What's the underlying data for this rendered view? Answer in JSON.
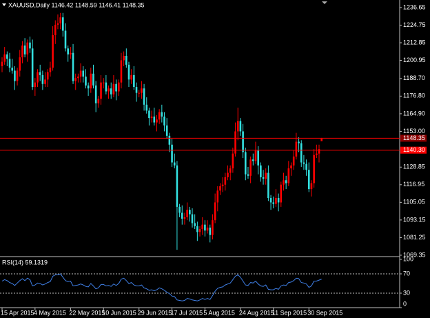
{
  "chart_data": [
    {
      "type": "candlestick",
      "title": "XAUUSD,Daily 1146.42 1148.59 1146.41 1148.35",
      "categories": [
        "15 Apr 2015",
        null,
        null,
        null,
        null,
        null,
        null,
        null,
        null,
        null,
        null,
        null,
        null,
        "4 May 2015",
        null,
        null,
        null,
        null,
        null,
        null,
        null,
        null,
        null,
        null,
        null,
        null,
        null,
        "22 May 2015",
        null,
        null,
        null,
        null,
        null,
        null,
        null,
        null,
        null,
        null,
        null,
        null,
        "10 Jun 2015",
        null,
        null,
        null,
        null,
        null,
        null,
        null,
        null,
        null,
        null,
        null,
        null,
        null,
        "29 Jun 2015",
        null,
        null,
        null,
        null,
        null,
        null,
        null,
        null,
        null,
        null,
        null,
        null,
        "17 Jul 2015",
        null,
        null,
        null,
        null,
        null,
        null,
        null,
        null,
        null,
        null,
        null,
        null,
        "5 Aug 2015",
        null,
        null,
        null,
        null,
        null,
        null,
        null,
        null,
        null,
        null,
        null,
        null,
        null,
        "24 Aug 2015",
        null,
        null,
        null,
        null,
        null,
        null,
        null,
        null,
        null,
        null,
        null,
        null,
        "11 Sep 2015",
        null,
        null,
        null,
        null,
        null,
        null,
        null,
        null,
        null,
        null,
        null,
        null,
        null,
        "30 Sep 2015",
        null,
        null,
        null,
        null,
        null
      ],
      "open": [
        1197,
        1200,
        1205,
        1202,
        1196,
        1194,
        1187,
        1194,
        1203,
        1211,
        1205,
        1213,
        1209,
        1183,
        1186,
        1193,
        1191,
        1185,
        1188,
        1193,
        1196,
        1218,
        1225,
        1226,
        1230,
        1221,
        1209,
        1205,
        1206,
        1187,
        1189,
        1190,
        1194,
        1190,
        1184,
        1182,
        1192,
        1184,
        1172,
        1175,
        1186,
        1186,
        1180,
        1182,
        1178,
        1185,
        1180,
        1186,
        1201,
        1204,
        1198,
        1188,
        1191,
        1183,
        1179,
        1179,
        1182,
        1171,
        1167,
        1162,
        1163,
        1159,
        1161,
        1166,
        1163,
        1157,
        1150,
        1144,
        1132,
        1130,
        1102,
        1098,
        1094,
        1095,
        1100,
        1097,
        1091,
        1089,
        1085,
        1087,
        1090,
        1086,
        1088,
        1083,
        1093,
        1105,
        1113,
        1116,
        1117,
        1122,
        1125,
        1128,
        1138,
        1153,
        1160,
        1153,
        1139,
        1124,
        1123,
        1134,
        1133,
        1140,
        1130,
        1122,
        1121,
        1125,
        1108,
        1105,
        1104,
        1108,
        1105,
        1117,
        1120,
        1118,
        1128,
        1130,
        1136,
        1146,
        1145,
        1132,
        1131,
        1127,
        1114,
        1118,
        1137,
        1138,
        1146.42
      ],
      "high": [
        1203,
        1210,
        1207,
        1206,
        1202,
        1197,
        1196,
        1208,
        1214,
        1216,
        1215,
        1217,
        1215,
        1189,
        1195,
        1198,
        1194,
        1193,
        1195,
        1200,
        1224,
        1228,
        1232,
        1233,
        1233,
        1226,
        1211,
        1210,
        1212,
        1192,
        1192,
        1199,
        1197,
        1195,
        1186,
        1196,
        1198,
        1187,
        1177,
        1191,
        1189,
        1191,
        1184,
        1186,
        1191,
        1188,
        1188,
        1206,
        1207,
        1209,
        1200,
        1195,
        1197,
        1186,
        1181,
        1187,
        1185,
        1176,
        1169,
        1167,
        1169,
        1164,
        1168,
        1171,
        1166,
        1162,
        1152,
        1148,
        1138,
        1133,
        1104,
        1103,
        1098,
        1105,
        1102,
        1101,
        1097,
        1092,
        1089,
        1095,
        1093,
        1093,
        1090,
        1097,
        1111,
        1116,
        1118,
        1122,
        1125,
        1130,
        1130,
        1142,
        1159,
        1169,
        1162,
        1158,
        1142,
        1129,
        1136,
        1138,
        1146,
        1143,
        1132,
        1127,
        1128,
        1130,
        1110,
        1109,
        1114,
        1111,
        1119,
        1125,
        1123,
        1133,
        1132,
        1140,
        1152,
        1149,
        1147,
        1137,
        1134,
        1132,
        1120,
        1141,
        1144,
        1144,
        1148.59
      ],
      "low": [
        1193,
        1198,
        1197,
        1193,
        1192,
        1181,
        1184,
        1190,
        1199,
        1203,
        1200,
        1206,
        1181,
        1177,
        1183,
        1187,
        1181,
        1183,
        1183,
        1190,
        1194,
        1212,
        1222,
        1222,
        1217,
        1207,
        1200,
        1202,
        1185,
        1181,
        1186,
        1186,
        1186,
        1182,
        1177,
        1179,
        1182,
        1166,
        1169,
        1171,
        1182,
        1178,
        1175,
        1175,
        1176,
        1174,
        1177,
        1182,
        1197,
        1196,
        1183,
        1185,
        1181,
        1173,
        1176,
        1175,
        1167,
        1165,
        1157,
        1159,
        1157,
        1153,
        1158,
        1159,
        1153,
        1148,
        1139,
        1129,
        1128,
        1073,
        1095,
        1090,
        1090,
        1093,
        1092,
        1088,
        1087,
        1079,
        1082,
        1083,
        1082,
        1084,
        1078,
        1080,
        1091,
        1099,
        1110,
        1112,
        1113,
        1120,
        1120,
        1125,
        1136,
        1147,
        1150,
        1135,
        1120,
        1121,
        1118,
        1130,
        1131,
        1124,
        1119,
        1117,
        1117,
        1106,
        1100,
        1101,
        1102,
        1099,
        1102,
        1113,
        1114,
        1116,
        1123,
        1127,
        1134,
        1139,
        1129,
        1127,
        1123,
        1112,
        1109,
        1115,
        1135,
        1132,
        1146.41
      ],
      "close": [
        1200,
        1205,
        1202,
        1196,
        1194,
        1187,
        1194,
        1203,
        1211,
        1205,
        1213,
        1209,
        1183,
        1186,
        1193,
        1191,
        1185,
        1188,
        1193,
        1196,
        1218,
        1225,
        1226,
        1230,
        1221,
        1209,
        1205,
        1206,
        1187,
        1189,
        1190,
        1194,
        1190,
        1184,
        1182,
        1192,
        1184,
        1172,
        1175,
        1186,
        1186,
        1180,
        1182,
        1178,
        1185,
        1180,
        1186,
        1201,
        1204,
        1198,
        1188,
        1191,
        1183,
        1179,
        1179,
        1182,
        1171,
        1167,
        1162,
        1163,
        1159,
        1161,
        1166,
        1163,
        1157,
        1150,
        1144,
        1132,
        1130,
        1102,
        1098,
        1094,
        1095,
        1100,
        1097,
        1091,
        1089,
        1085,
        1087,
        1090,
        1086,
        1088,
        1083,
        1093,
        1105,
        1113,
        1116,
        1117,
        1122,
        1125,
        1128,
        1138,
        1153,
        1160,
        1153,
        1139,
        1124,
        1123,
        1134,
        1133,
        1140,
        1130,
        1122,
        1121,
        1125,
        1108,
        1105,
        1104,
        1108,
        1105,
        1117,
        1120,
        1118,
        1128,
        1130,
        1136,
        1146,
        1145,
        1132,
        1131,
        1127,
        1114,
        1118,
        1137,
        1138,
        1141,
        1148.35
      ],
      "up_color": "#ff0000",
      "down_color": "#33e0e0",
      "ylim": [
        1068.4,
        1240.8
      ],
      "yticks": [
        1236.65,
        1224.75,
        1212.85,
        1200.95,
        {
          "value": 1188.7,
          "label": "1188.70"
        },
        {
          "value": 1176.8,
          "label": "1176.80"
        },
        {
          "value": 1164.9,
          "label": "1164.90"
        },
        {
          "value": 1153,
          "label": "1153.00"
        },
        1128.85,
        1116.95,
        1105.05,
        1093.15,
        1081.25,
        1069.35
      ],
      "hlines": [
        1148.35,
        {
          "value": 1140.3,
          "label": "1140.30"
        }
      ],
      "hline_color": "#ff0000"
    },
    {
      "type": "line",
      "title": "RSI(14) 59.1319",
      "values": [
        55,
        58,
        56,
        52,
        50,
        46,
        51,
        56,
        60,
        56,
        61,
        58,
        45,
        47,
        51,
        50,
        47,
        49,
        52,
        54,
        65,
        68,
        68,
        70,
        63,
        56,
        54,
        55,
        45,
        46,
        47,
        49,
        47,
        44,
        43,
        50,
        45,
        39,
        41,
        48,
        48,
        45,
        46,
        44,
        49,
        46,
        50,
        59,
        61,
        56,
        50,
        52,
        47,
        45,
        45,
        47,
        41,
        39,
        36,
        37,
        35,
        37,
        41,
        39,
        36,
        32,
        29,
        24,
        23,
        16,
        15,
        14,
        15,
        19,
        18,
        16,
        15,
        14,
        16,
        19,
        17,
        19,
        17,
        25,
        34,
        40,
        42,
        43,
        47,
        49,
        51,
        58,
        65,
        68,
        63,
        55,
        47,
        46,
        52,
        51,
        55,
        49,
        45,
        44,
        47,
        38,
        37,
        37,
        40,
        38,
        45,
        47,
        46,
        52,
        53,
        56,
        61,
        60,
        52,
        51,
        49,
        42,
        45,
        55,
        55,
        57,
        59.1319
      ],
      "color": "#3f7fe6",
      "ylim": [
        0,
        100
      ],
      "yticks": [
        100,
        70,
        30,
        0
      ],
      "levels": [
        70,
        30
      ]
    }
  ]
}
